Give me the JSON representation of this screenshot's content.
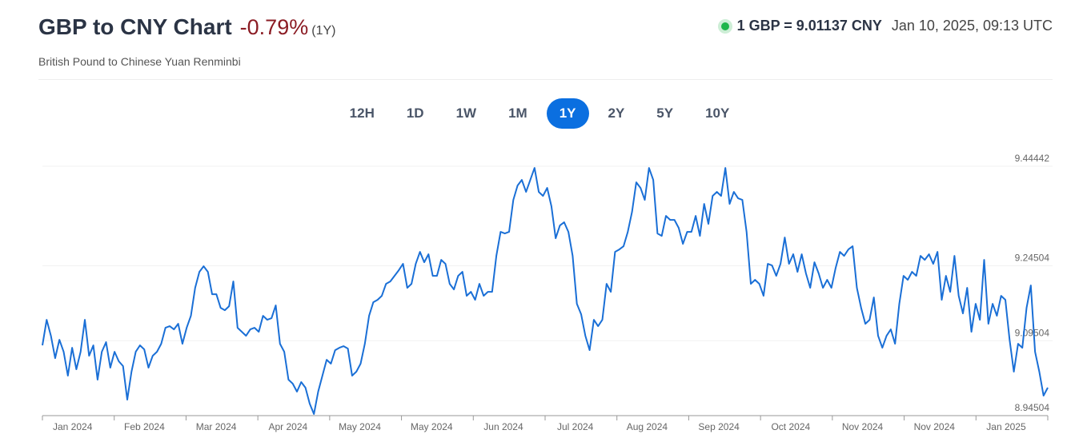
{
  "header": {
    "title": "GBP to CNY Chart",
    "change": "-0.79%",
    "period": "(1Y)",
    "subtitle": "British Pound to Chinese Yuan Renminbi",
    "rate": "1 GBP = 9.01137 CNY",
    "timestamp": "Jan 10, 2025, 09:13 UTC"
  },
  "range_buttons": {
    "labels": [
      "12H",
      "1D",
      "1W",
      "1M",
      "1Y",
      "2Y",
      "5Y",
      "10Y"
    ],
    "selected": "1Y"
  },
  "chart_data": {
    "type": "line",
    "color": "#1a6fd6",
    "grid": true,
    "ylim": [
      8.94504,
      9.44442
    ],
    "yticks": [
      8.94504,
      9.09504,
      9.24504,
      9.44442
    ],
    "x_tick_labels": [
      "Jan 2024",
      "Feb 2024",
      "Mar 2024",
      "Apr 2024",
      "May 2024",
      "May 2024",
      "Jun 2024",
      "Jul 2024",
      "Aug 2024",
      "Sep 2024",
      "Oct 2024",
      "Nov 2024",
      "Nov 2024",
      "Jan 2025"
    ],
    "values": [
      9.0858,
      9.137,
      9.105,
      9.0602,
      9.097,
      9.073,
      9.025,
      9.081,
      9.0378,
      9.073,
      9.137,
      9.065,
      9.0858,
      9.017,
      9.073,
      9.0922,
      9.041,
      9.073,
      9.0538,
      9.0442,
      8.977,
      9.033,
      9.073,
      9.0858,
      9.0778,
      9.041,
      9.065,
      9.073,
      9.089,
      9.121,
      9.1242,
      9.1178,
      9.129,
      9.089,
      9.121,
      9.145,
      9.201,
      9.233,
      9.2442,
      9.233,
      9.1882,
      9.1882,
      9.161,
      9.1562,
      9.1642,
      9.2138,
      9.121,
      9.113,
      9.105,
      9.1178,
      9.121,
      9.113,
      9.145,
      9.137,
      9.1402,
      9.1658,
      9.089,
      9.073,
      9.017,
      9.009,
      8.993,
      9.0122,
      9.001,
      8.969,
      8.9482,
      8.993,
      9.025,
      9.057,
      9.049,
      9.0762,
      9.081,
      9.0842,
      9.0794,
      9.025,
      9.033,
      9.049,
      9.089,
      9.145,
      9.1722,
      9.177,
      9.185,
      9.209,
      9.2138,
      9.225,
      9.2362,
      9.249,
      9.201,
      9.209,
      9.249,
      9.273,
      9.2522,
      9.2682,
      9.225,
      9.225,
      9.257,
      9.249,
      9.209,
      9.1978,
      9.225,
      9.233,
      9.185,
      9.193,
      9.177,
      9.209,
      9.185,
      9.193,
      9.193,
      9.265,
      9.313,
      9.3098,
      9.313,
      9.377,
      9.4058,
      9.417,
      9.393,
      9.417,
      9.441,
      9.393,
      9.385,
      9.401,
      9.3642,
      9.3002,
      9.3258,
      9.3322,
      9.313,
      9.265,
      9.169,
      9.1482,
      9.105,
      9.0762,
      9.137,
      9.1242,
      9.137,
      9.209,
      9.193,
      9.273,
      9.2778,
      9.2842,
      9.313,
      9.353,
      9.4122,
      9.401,
      9.377,
      9.441,
      9.417,
      9.3098,
      9.305,
      9.345,
      9.337,
      9.337,
      9.321,
      9.289,
      9.313,
      9.313,
      9.345,
      9.305,
      9.369,
      9.329,
      9.385,
      9.393,
      9.385,
      9.441,
      9.369,
      9.393,
      9.3802,
      9.377,
      9.313,
      9.209,
      9.217,
      9.209,
      9.185,
      9.249,
      9.2458,
      9.225,
      9.249,
      9.3018,
      9.249,
      9.2682,
      9.233,
      9.2682,
      9.2298,
      9.201,
      9.2522,
      9.2298,
      9.201,
      9.217,
      9.201,
      9.241,
      9.273,
      9.265,
      9.2778,
      9.2842,
      9.201,
      9.161,
      9.129,
      9.137,
      9.1818,
      9.105,
      9.081,
      9.105,
      9.1178,
      9.089,
      9.169,
      9.225,
      9.217,
      9.233,
      9.225,
      9.265,
      9.257,
      9.2682,
      9.249,
      9.273,
      9.177,
      9.225,
      9.193,
      9.265,
      9.185,
      9.1498,
      9.201,
      9.113,
      9.169,
      9.137,
      9.257,
      9.129,
      9.169,
      9.145,
      9.185,
      9.177,
      9.097,
      9.033,
      9.089,
      9.081,
      9.161,
      9.2058,
      9.073,
      9.033,
      8.985,
      9.001
    ]
  }
}
